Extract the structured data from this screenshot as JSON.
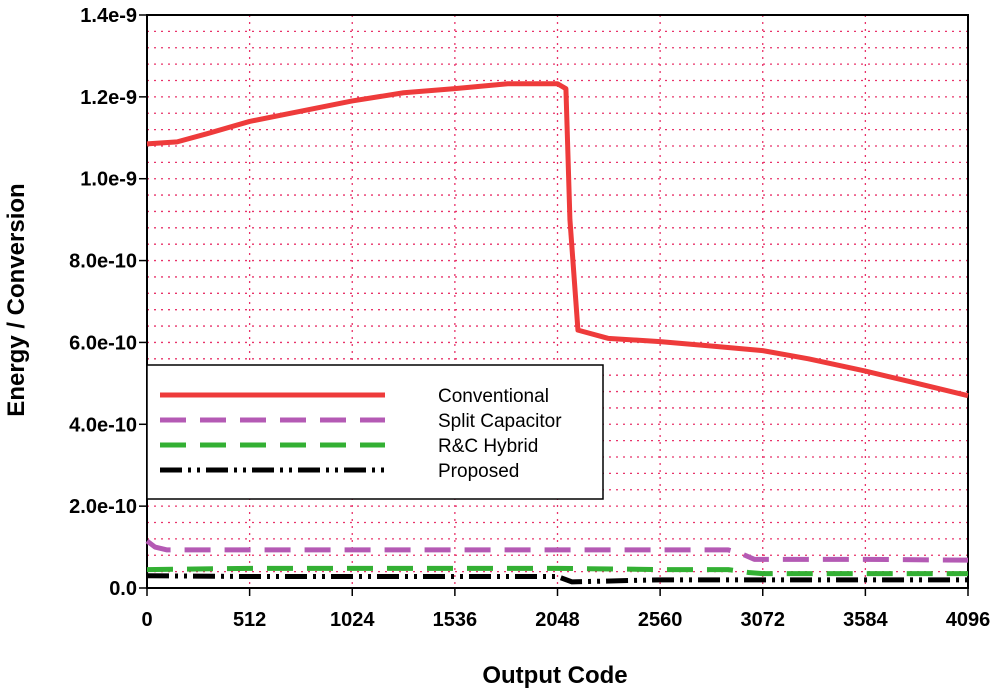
{
  "chart_data": {
    "type": "line",
    "title": "",
    "xlabel": "Output Code",
    "ylabel": "Energy / Conversion",
    "xlim": [
      0,
      4096
    ],
    "ylim": [
      0,
      1.4e-09
    ],
    "xticks": [
      "0",
      "512",
      "1024",
      "1536",
      "2048",
      "2560",
      "3072",
      "3584",
      "4096"
    ],
    "xtick_values": [
      0,
      512,
      1024,
      1536,
      2048,
      2560,
      3072,
      3584,
      4096
    ],
    "yticks": [
      "0.0",
      "2.0e-10",
      "4.0e-10",
      "6.0e-10",
      "8.0e-10",
      "1.0e-9",
      "1.2e-9",
      "1.4e-9"
    ],
    "ytick_values": [
      0,
      2e-10,
      4e-10,
      6e-10,
      8e-10,
      1e-09,
      1.2e-09,
      1.4e-09
    ],
    "grid": true,
    "legend_position": "lower-left",
    "series": [
      {
        "name": "Conventional",
        "color": "#ee3b3b",
        "dash": "solid",
        "x": [
          0,
          150,
          300,
          512,
          768,
          1024,
          1280,
          1536,
          1800,
          2048,
          2090,
          2110,
          2150,
          2300,
          2560,
          2800,
          3072,
          3300,
          3584,
          3800,
          4096
        ],
        "y": [
          1.085e-09,
          1.09e-09,
          1.11e-09,
          1.14e-09,
          1.165e-09,
          1.19e-09,
          1.21e-09,
          1.22e-09,
          1.232e-09,
          1.232e-09,
          1.22e-09,
          9e-10,
          6.3e-10,
          6.1e-10,
          6.02e-10,
          5.92e-10,
          5.8e-10,
          5.6e-10,
          5.3e-10,
          5.05e-10,
          4.7e-10
        ]
      },
      {
        "name": "Split Capacitor",
        "color": "#b45ab4",
        "dash": "dashed",
        "x": [
          0,
          40,
          100,
          512,
          1024,
          2048,
          2900,
          2960,
          3030,
          3072,
          3584,
          4096
        ],
        "y": [
          1.15e-10,
          1e-10,
          9.3e-11,
          9.3e-11,
          9.3e-11,
          9.3e-11,
          9.3e-11,
          8.5e-11,
          7e-11,
          7e-11,
          7e-11,
          6.8e-11
        ]
      },
      {
        "name": "R&C Hybrid",
        "color": "#33b033",
        "dash": "dashed",
        "x": [
          0,
          512,
          1024,
          2048,
          2560,
          2900,
          3000,
          3072,
          3584,
          4096
        ],
        "y": [
          4.5e-11,
          4.8e-11,
          4.8e-11,
          4.8e-11,
          4.5e-11,
          4.5e-11,
          3.8e-11,
          3.5e-11,
          3.5e-11,
          3.5e-11
        ]
      },
      {
        "name": "Proposed",
        "color": "#000000",
        "dash": "dashdotdot",
        "x": [
          0,
          512,
          1024,
          2048,
          2120,
          2560,
          3072,
          3584,
          4096
        ],
        "y": [
          3e-11,
          2.8e-11,
          2.8e-11,
          2.8e-11,
          1.5e-11,
          2e-11,
          2e-11,
          2e-11,
          2e-11
        ]
      }
    ]
  }
}
